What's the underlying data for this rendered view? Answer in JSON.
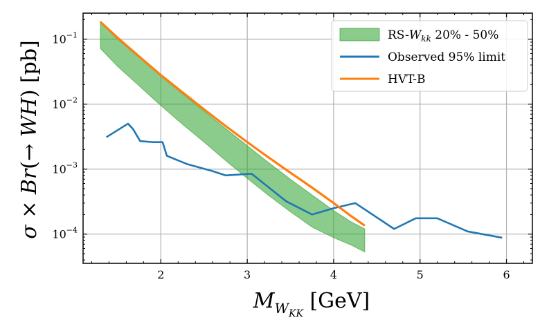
{
  "chart_data": {
    "type": "line",
    "xlabel": "M_{W_KK} [GeV]",
    "ylabel": "σ × Br(→ WH) [pb]",
    "xlim": [
      1.1,
      6.3
    ],
    "ylim_log10": [
      -4.45,
      -0.6
    ],
    "x_ticks": [
      2,
      3,
      4,
      5,
      6
    ],
    "y_ticks": [
      -4,
      -3,
      -2,
      -1
    ],
    "grid": true,
    "legend_position": "top-right",
    "band": {
      "name": "RS-W_kk 20% - 50%",
      "color": "#2ca02c",
      "x": [
        1.3,
        1.5,
        1.75,
        2.0,
        2.25,
        2.5,
        2.75,
        3.0,
        3.25,
        3.5,
        3.75,
        4.0,
        4.2,
        4.36
      ],
      "upper": [
        0.18,
        0.1,
        0.052,
        0.027,
        0.0145,
        0.0078,
        0.0042,
        0.0023,
        0.00125,
        0.0007,
        0.0004,
        0.00023,
        0.000155,
        0.00012
      ],
      "lower": [
        0.072,
        0.038,
        0.019,
        0.0095,
        0.0049,
        0.0026,
        0.00135,
        0.00072,
        0.00039,
        0.00022,
        0.000128,
        8.8e-05,
        6.8e-05,
        5.3e-05
      ]
    },
    "series": [
      {
        "name": "Observed 95% limit",
        "color": "#1f77b4",
        "x": [
          1.37,
          1.62,
          1.68,
          1.76,
          1.9,
          2.02,
          2.07,
          2.3,
          2.6,
          2.75,
          3.05,
          3.45,
          3.75,
          4.0,
          4.25,
          4.7,
          4.95,
          5.2,
          5.55,
          5.95
        ],
        "y": [
          0.0031,
          0.005,
          0.0041,
          0.0027,
          0.0026,
          0.0026,
          0.0016,
          0.0012,
          0.00093,
          0.0008,
          0.00085,
          0.00032,
          0.0002,
          0.00025,
          0.0003,
          0.00012,
          0.000175,
          0.000175,
          0.00011,
          8.8e-05
        ]
      },
      {
        "name": "HVT-B",
        "color": "#ff7f0e",
        "x": [
          1.3,
          1.5,
          1.75,
          2.0,
          2.25,
          2.5,
          2.75,
          3.0,
          3.25,
          3.5,
          3.75,
          4.0,
          4.2,
          4.36
        ],
        "y": [
          0.185,
          0.105,
          0.054,
          0.028,
          0.0152,
          0.0083,
          0.0046,
          0.0026,
          0.0015,
          0.00088,
          0.00052,
          0.0003,
          0.00019,
          0.000135
        ]
      }
    ],
    "legend": {
      "band_label_prefix": "RS-",
      "band_label_main": "W",
      "band_label_sub": "kk",
      "band_label_suffix": " 20% - 50%",
      "observed_label": "Observed 95% limit",
      "hvt_label": "HVT-B"
    },
    "x_tick_labels": [
      "2",
      "3",
      "4",
      "5",
      "6"
    ],
    "y_tick_labels": [
      {
        "base": "10",
        "exp": "−4"
      },
      {
        "base": "10",
        "exp": "−3"
      },
      {
        "base": "10",
        "exp": "−2"
      },
      {
        "base": "10",
        "exp": "−1"
      }
    ],
    "x_axis_text": {
      "main": "M",
      "sub1": "W",
      "sub2": "KK",
      "unit": " [GeV]"
    },
    "y_axis_text": {
      "part1": "σ × ",
      "part2": "Br",
      "part3": "(→ ",
      "part4": "WH",
      "part5": ") [pb]"
    }
  }
}
